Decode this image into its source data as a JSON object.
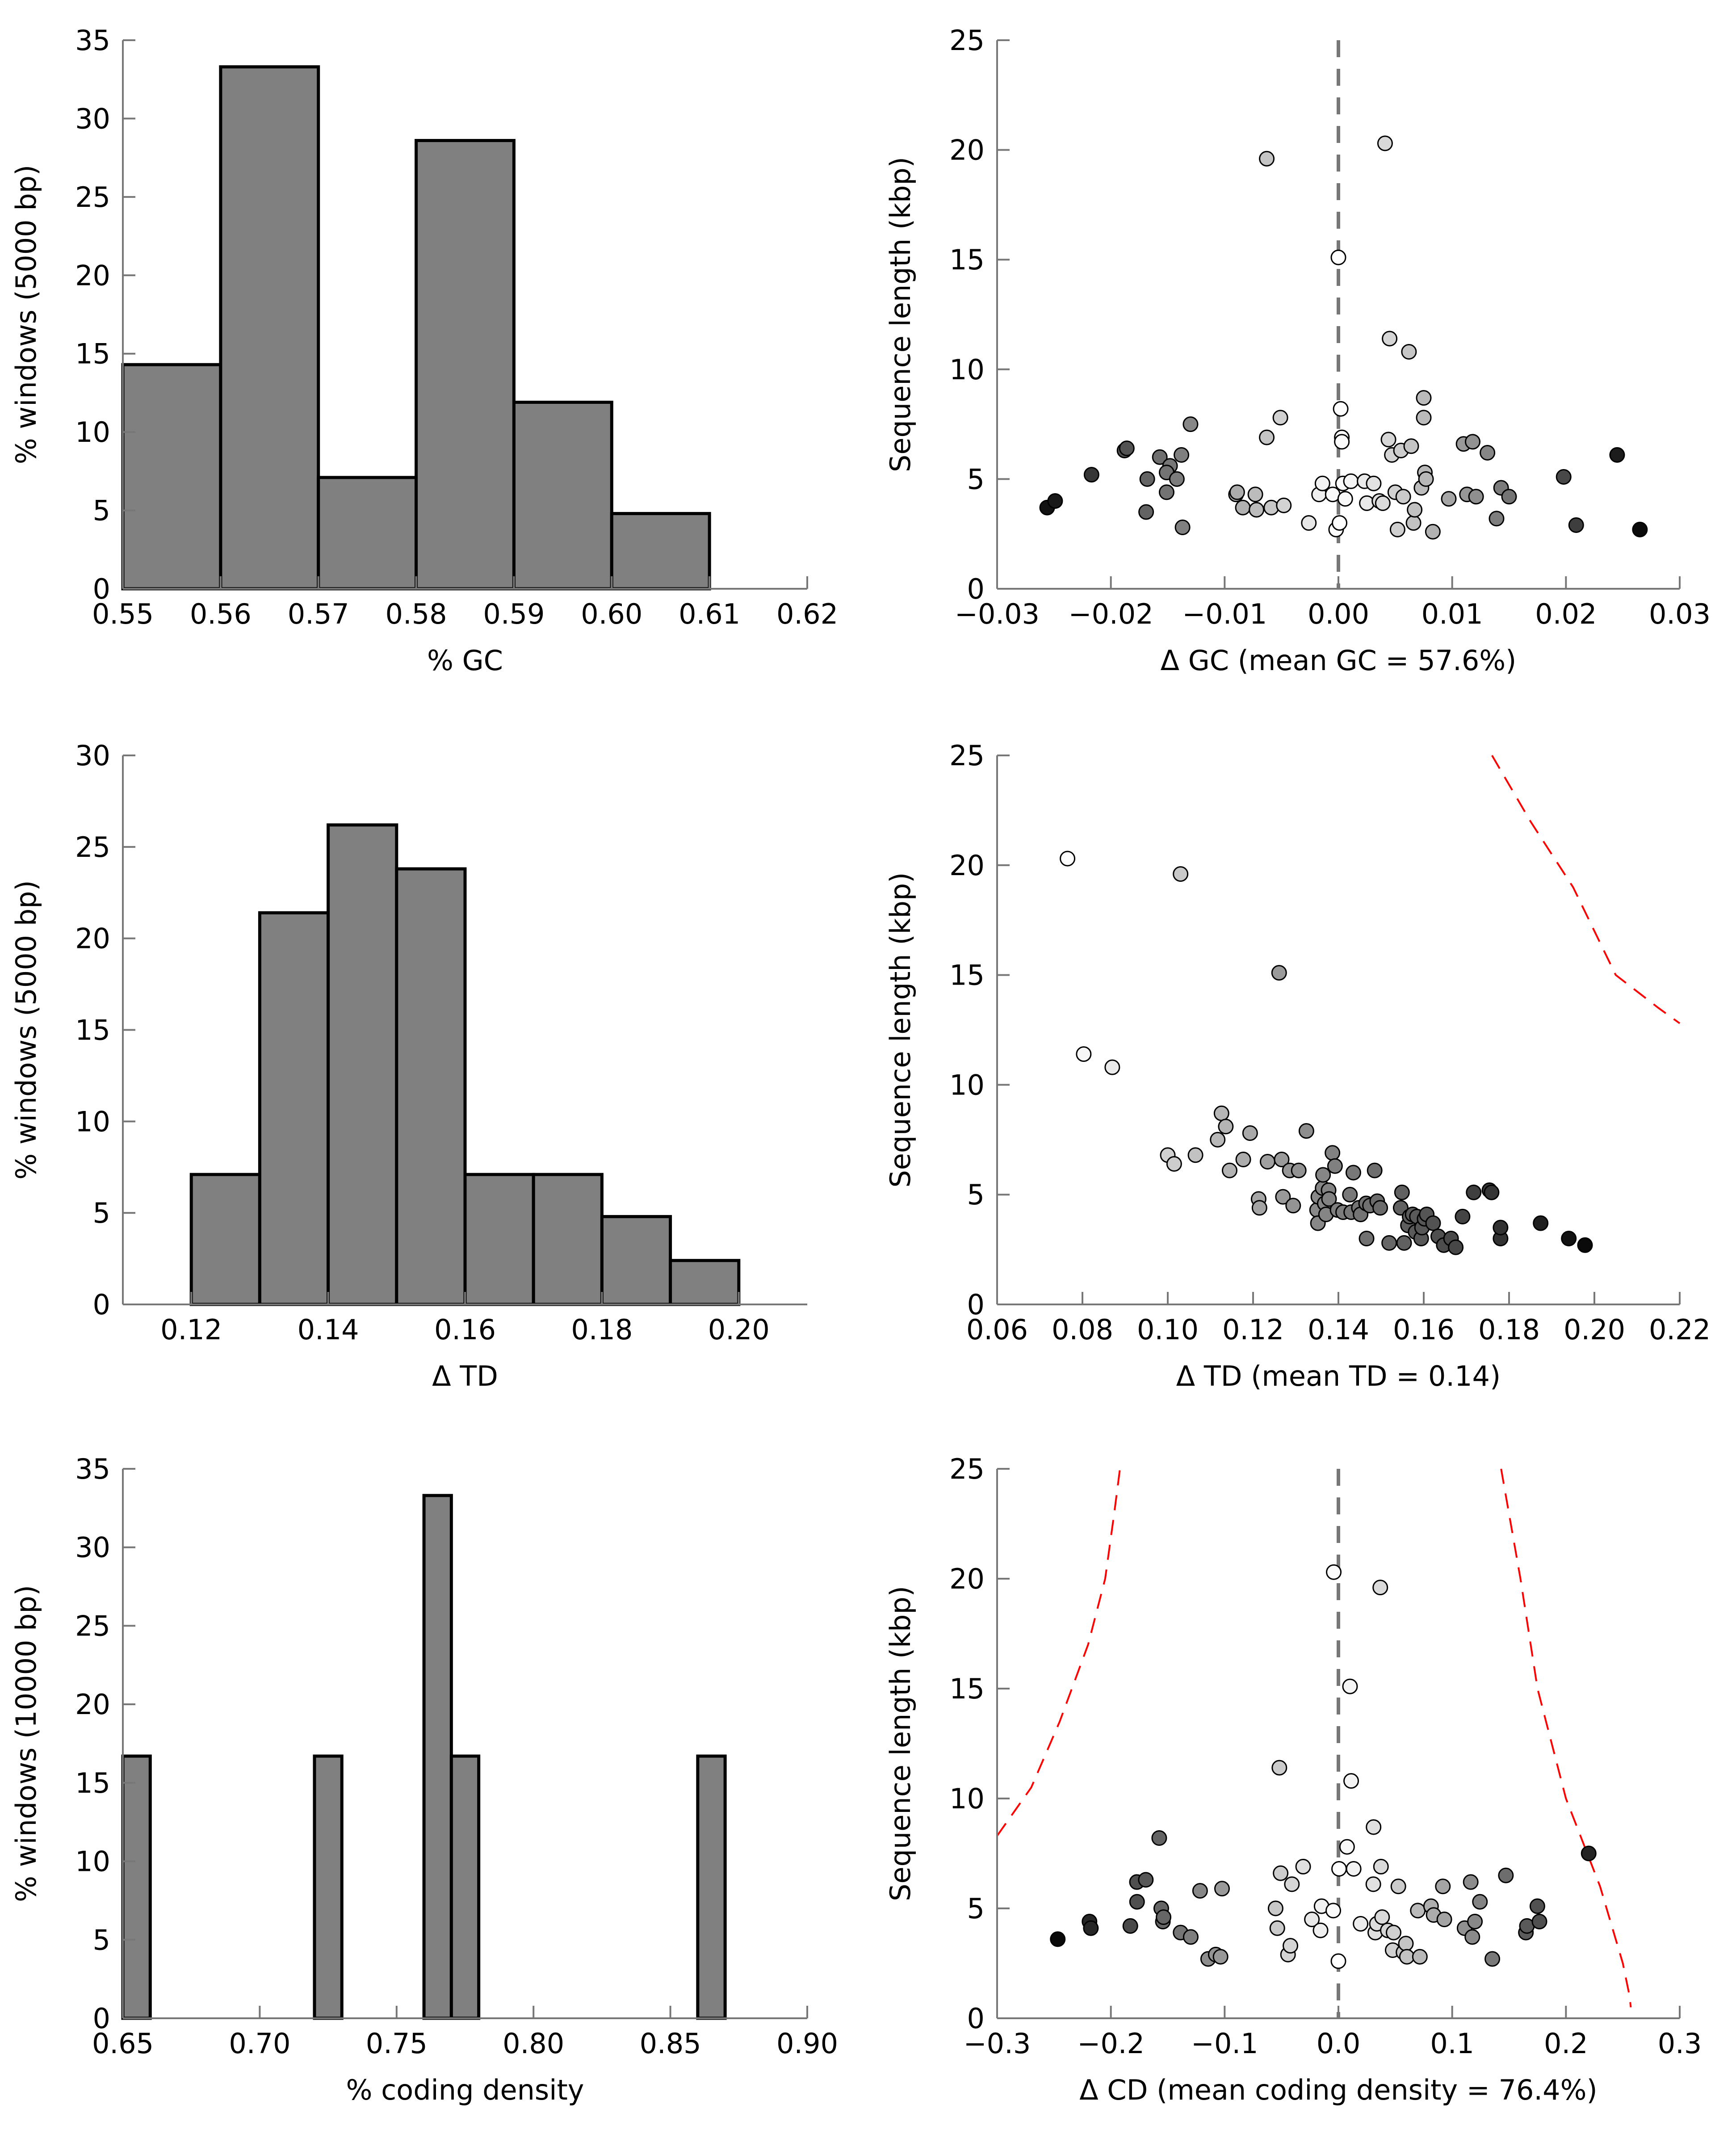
{
  "chart_data": [
    {
      "id": "hist-gc",
      "type": "bar",
      "xlabel": "% GC",
      "ylabel": "% windows (5000 bp)",
      "xlim": [
        0.55,
        0.62
      ],
      "ylim": [
        0,
        35
      ],
      "xticks": [
        "0.55",
        "0.56",
        "0.57",
        "0.58",
        "0.59",
        "0.60",
        "0.61",
        "0.62"
      ],
      "yticks": [
        "0",
        "5",
        "10",
        "15",
        "20",
        "25",
        "30",
        "35"
      ],
      "bins": [
        {
          "x0": 0.55,
          "x1": 0.56,
          "value": 14.3
        },
        {
          "x0": 0.56,
          "x1": 0.57,
          "value": 33.3
        },
        {
          "x0": 0.57,
          "x1": 0.58,
          "value": 7.1
        },
        {
          "x0": 0.58,
          "x1": 0.59,
          "value": 28.6
        },
        {
          "x0": 0.59,
          "x1": 0.6,
          "value": 11.9
        },
        {
          "x0": 0.6,
          "x1": 0.61,
          "value": 4.8
        }
      ],
      "bar_color": "#808080"
    },
    {
      "id": "scatter-gc",
      "type": "scatter",
      "xlabel": "Δ GC (mean GC = 57.6%)",
      "ylabel": "Sequence length (kbp)",
      "xlim": [
        -0.03,
        0.03
      ],
      "ylim": [
        0,
        25
      ],
      "xticks": [
        "−0.03",
        "−0.02",
        "−0.01",
        "0.00",
        "0.01",
        "0.02",
        "0.03"
      ],
      "yticks": [
        "0",
        "5",
        "10",
        "15",
        "20",
        "25"
      ],
      "vline_x": 0,
      "points": [
        [
          -0.0256,
          3.7
        ],
        [
          -0.0249,
          4.0
        ],
        [
          -0.0217,
          5.2
        ],
        [
          -0.0188,
          6.3
        ],
        [
          -0.0186,
          6.4
        ],
        [
          -0.0168,
          5.0
        ],
        [
          -0.0169,
          3.5
        ],
        [
          -0.0157,
          6.0
        ],
        [
          -0.0148,
          5.6
        ],
        [
          -0.0151,
          4.4
        ],
        [
          -0.0151,
          5.3
        ],
        [
          -0.0142,
          5.0
        ],
        [
          -0.0138,
          6.1
        ],
        [
          -0.0137,
          2.8
        ],
        [
          -0.013,
          7.5
        ],
        [
          -0.009,
          4.3
        ],
        [
          -0.0089,
          4.4
        ],
        [
          -0.0084,
          3.7
        ],
        [
          -0.0073,
          4.3
        ],
        [
          -0.0072,
          3.6
        ],
        [
          -0.0063,
          19.6
        ],
        [
          -0.0063,
          6.9
        ],
        [
          -0.0059,
          3.7
        ],
        [
          -0.0051,
          7.8
        ],
        [
          -0.0048,
          3.8
        ],
        [
          -0.0026,
          3.0
        ],
        [
          -0.0017,
          4.3
        ],
        [
          -0.0014,
          4.8
        ],
        [
          -0.0005,
          4.3
        ],
        [
          -0.0002,
          2.7
        ],
        [
          0.0,
          15.1
        ],
        [
          0.0001,
          3.0
        ],
        [
          0.0002,
          8.2
        ],
        [
          0.0003,
          6.9
        ],
        [
          0.0003,
          6.7
        ],
        [
          0.0004,
          4.8
        ],
        [
          0.0006,
          4.1
        ],
        [
          0.0011,
          4.9
        ],
        [
          0.0023,
          4.9
        ],
        [
          0.0025,
          3.9
        ],
        [
          0.0031,
          4.8
        ],
        [
          0.0036,
          4.0
        ],
        [
          0.0039,
          3.9
        ],
        [
          0.0041,
          20.3
        ],
        [
          0.0044,
          6.8
        ],
        [
          0.0045,
          11.4
        ],
        [
          0.0047,
          6.1
        ],
        [
          0.005,
          4.4
        ],
        [
          0.0052,
          2.7
        ],
        [
          0.0055,
          6.3
        ],
        [
          0.0057,
          4.2
        ],
        [
          0.0062,
          10.8
        ],
        [
          0.0064,
          6.5
        ],
        [
          0.0066,
          3.0
        ],
        [
          0.0067,
          3.6
        ],
        [
          0.0073,
          4.6
        ],
        [
          0.0075,
          8.7
        ],
        [
          0.0075,
          7.8
        ],
        [
          0.0076,
          5.3
        ],
        [
          0.0077,
          5.0
        ],
        [
          0.0083,
          2.6
        ],
        [
          0.0097,
          4.1
        ],
        [
          0.011,
          6.6
        ],
        [
          0.0113,
          4.3
        ],
        [
          0.0118,
          6.7
        ],
        [
          0.0121,
          4.2
        ],
        [
          0.0131,
          6.2
        ],
        [
          0.0139,
          3.2
        ],
        [
          0.0143,
          4.6
        ],
        [
          0.015,
          4.2
        ],
        [
          0.0198,
          5.1
        ],
        [
          0.0209,
          2.9
        ],
        [
          0.0245,
          6.1
        ],
        [
          0.0265,
          2.7
        ]
      ]
    },
    {
      "id": "hist-td",
      "type": "bar",
      "xlabel": "Δ TD",
      "ylabel": "% windows (5000 bp)",
      "xlim": [
        0.11,
        0.21
      ],
      "ylim": [
        0,
        30
      ],
      "xticks": [
        "0.12",
        "0.14",
        "0.16",
        "0.18",
        "0.20"
      ],
      "xtick_values": [
        0.12,
        0.14,
        0.16,
        0.18,
        0.2
      ],
      "yticks": [
        "0",
        "5",
        "10",
        "15",
        "20",
        "25",
        "30"
      ],
      "bins": [
        {
          "x0": 0.12,
          "x1": 0.13,
          "value": 7.1
        },
        {
          "x0": 0.13,
          "x1": 0.14,
          "value": 21.4
        },
        {
          "x0": 0.14,
          "x1": 0.15,
          "value": 26.2
        },
        {
          "x0": 0.15,
          "x1": 0.16,
          "value": 23.8
        },
        {
          "x0": 0.16,
          "x1": 0.17,
          "value": 7.1
        },
        {
          "x0": 0.17,
          "x1": 0.18,
          "value": 7.1
        },
        {
          "x0": 0.18,
          "x1": 0.19,
          "value": 4.8
        },
        {
          "x0": 0.19,
          "x1": 0.2,
          "value": 2.4
        }
      ],
      "bar_color": "#808080"
    },
    {
      "id": "scatter-td",
      "type": "scatter",
      "xlabel": "Δ TD (mean TD = 0.14)",
      "ylabel": "Sequence length (kbp)",
      "xlim": [
        0.06,
        0.22
      ],
      "ylim": [
        0,
        25
      ],
      "xticks": [
        "0.06",
        "0.08",
        "0.10",
        "0.12",
        "0.14",
        "0.16",
        "0.18",
        "0.20",
        "0.22"
      ],
      "yticks": [
        "0",
        "5",
        "10",
        "15",
        "20",
        "25"
      ],
      "curve": [
        [
          0.176,
          25.0
        ],
        [
          0.185,
          22.0
        ],
        [
          0.195,
          19.0
        ],
        [
          0.205,
          15.0
        ],
        [
          0.215,
          13.5
        ],
        [
          0.22,
          12.8
        ]
      ],
      "points": [
        [
          0.0765,
          20.3
        ],
        [
          0.0803,
          11.4
        ],
        [
          0.087,
          10.8
        ],
        [
          0.1,
          6.8
        ],
        [
          0.1015,
          6.4
        ],
        [
          0.103,
          19.6
        ],
        [
          0.1065,
          6.8
        ],
        [
          0.1117,
          7.5
        ],
        [
          0.1126,
          8.7
        ],
        [
          0.1136,
          8.1
        ],
        [
          0.1145,
          6.1
        ],
        [
          0.1177,
          6.6
        ],
        [
          0.1193,
          7.8
        ],
        [
          0.1213,
          4.8
        ],
        [
          0.1215,
          4.4
        ],
        [
          0.1234,
          6.5
        ],
        [
          0.1261,
          15.1
        ],
        [
          0.1267,
          6.6
        ],
        [
          0.127,
          4.9
        ],
        [
          0.1286,
          6.1
        ],
        [
          0.1294,
          4.5
        ],
        [
          0.1307,
          6.1
        ],
        [
          0.1325,
          7.9
        ],
        [
          0.135,
          4.3
        ],
        [
          0.1352,
          3.7
        ],
        [
          0.1353,
          4.9
        ],
        [
          0.1363,
          5.3
        ],
        [
          0.1364,
          5.9
        ],
        [
          0.1368,
          4.6
        ],
        [
          0.1371,
          4.1
        ],
        [
          0.1377,
          5.2
        ],
        [
          0.1378,
          4.8
        ],
        [
          0.1386,
          6.9
        ],
        [
          0.1392,
          6.3
        ],
        [
          0.1398,
          4.3
        ],
        [
          0.1411,
          4.2
        ],
        [
          0.1427,
          5.0
        ],
        [
          0.143,
          4.2
        ],
        [
          0.1435,
          6.0
        ],
        [
          0.1448,
          4.4
        ],
        [
          0.1452,
          4.1
        ],
        [
          0.1465,
          4.6
        ],
        [
          0.1466,
          3.0
        ],
        [
          0.1474,
          4.5
        ],
        [
          0.1485,
          6.1
        ],
        [
          0.1491,
          4.7
        ],
        [
          0.1498,
          4.4
        ],
        [
          0.1519,
          2.8
        ],
        [
          0.1546,
          4.4
        ],
        [
          0.1549,
          5.1
        ],
        [
          0.1554,
          2.8
        ],
        [
          0.1563,
          3.6
        ],
        [
          0.1567,
          4.0
        ],
        [
          0.1574,
          4.1
        ],
        [
          0.1581,
          3.3
        ],
        [
          0.1584,
          4.0
        ],
        [
          0.1594,
          3.0
        ],
        [
          0.1596,
          3.5
        ],
        [
          0.1602,
          3.9
        ],
        [
          0.1607,
          4.1
        ],
        [
          0.1622,
          3.7
        ],
        [
          0.1634,
          3.1
        ],
        [
          0.1647,
          2.7
        ],
        [
          0.1664,
          3.0
        ],
        [
          0.1675,
          2.6
        ],
        [
          0.1691,
          4.0
        ],
        [
          0.1717,
          5.1
        ],
        [
          0.1754,
          5.2
        ],
        [
          0.1759,
          5.1
        ],
        [
          0.178,
          3.0
        ],
        [
          0.178,
          3.5
        ],
        [
          0.1874,
          3.7
        ],
        [
          0.194,
          3.0
        ],
        [
          0.1978,
          2.7
        ]
      ]
    },
    {
      "id": "hist-cd",
      "type": "bar",
      "xlabel": "% coding density",
      "ylabel": "% windows (10000 bp)",
      "xlim": [
        0.65,
        0.9
      ],
      "ylim": [
        0,
        35
      ],
      "xticks": [
        "0.65",
        "0.70",
        "0.75",
        "0.80",
        "0.85",
        "0.90"
      ],
      "yticks": [
        "0",
        "5",
        "10",
        "15",
        "20",
        "25",
        "30",
        "35"
      ],
      "bins": [
        {
          "x0": 0.65,
          "x1": 0.66,
          "value": 16.7
        },
        {
          "x0": 0.72,
          "x1": 0.73,
          "value": 16.7
        },
        {
          "x0": 0.76,
          "x1": 0.77,
          "value": 33.3
        },
        {
          "x0": 0.77,
          "x1": 0.78,
          "value": 16.7
        },
        {
          "x0": 0.86,
          "x1": 0.87,
          "value": 16.7
        }
      ],
      "bar_color": "#808080"
    },
    {
      "id": "scatter-cd",
      "type": "scatter",
      "xlabel": "Δ CD (mean coding density = 76.4%)",
      "ylabel": "Sequence length (kbp)",
      "xlim": [
        -0.3,
        0.3
      ],
      "ylim": [
        0,
        25
      ],
      "xticks": [
        "−0.3",
        "−0.2",
        "−0.1",
        "0.0",
        "0.1",
        "0.2",
        "0.3"
      ],
      "yticks": [
        "0",
        "5",
        "10",
        "15",
        "20",
        "25"
      ],
      "vline_x": 0,
      "curve_left": [
        [
          -0.3,
          8.3
        ],
        [
          -0.27,
          10.5
        ],
        [
          -0.245,
          13.5
        ],
        [
          -0.22,
          17.0
        ],
        [
          -0.205,
          20.0
        ],
        [
          -0.197,
          23.0
        ],
        [
          -0.192,
          25.0
        ]
      ],
      "curve_right": [
        [
          0.143,
          25.0
        ],
        [
          0.16,
          20.0
        ],
        [
          0.175,
          15.0
        ],
        [
          0.2,
          10.0
        ],
        [
          0.23,
          6.0
        ],
        [
          0.25,
          2.5
        ],
        [
          0.256,
          1.0
        ],
        [
          0.257,
          0.5
        ]
      ],
      "points": [
        [
          -0.2467,
          3.6
        ],
        [
          -0.2188,
          4.4
        ],
        [
          -0.2176,
          4.1
        ],
        [
          -0.1829,
          4.2
        ],
        [
          -0.1771,
          6.2
        ],
        [
          -0.177,
          5.3
        ],
        [
          -0.1693,
          6.3
        ],
        [
          -0.1575,
          8.2
        ],
        [
          -0.1557,
          5.0
        ],
        [
          -0.1543,
          4.4
        ],
        [
          -0.1537,
          4.6
        ],
        [
          -0.1387,
          3.9
        ],
        [
          -0.1298,
          3.7
        ],
        [
          -0.1216,
          5.8
        ],
        [
          -0.1145,
          2.7
        ],
        [
          -0.1078,
          2.9
        ],
        [
          -0.1036,
          2.8
        ],
        [
          -0.1023,
          5.9
        ],
        [
          -0.0552,
          5.0
        ],
        [
          -0.0537,
          4.1
        ],
        [
          -0.0519,
          11.4
        ],
        [
          -0.0508,
          6.6
        ],
        [
          -0.0443,
          2.9
        ],
        [
          -0.0422,
          3.3
        ],
        [
          -0.0409,
          6.1
        ],
        [
          -0.031,
          6.9
        ],
        [
          -0.0233,
          4.5
        ],
        [
          -0.0157,
          4.0
        ],
        [
          -0.0148,
          5.1
        ],
        [
          -0.0045,
          4.9
        ],
        [
          -0.0041,
          20.3
        ],
        [
          0.0,
          2.6
        ],
        [
          0.0006,
          6.8
        ],
        [
          0.0076,
          7.8
        ],
        [
          0.0102,
          15.1
        ],
        [
          0.0112,
          10.8
        ],
        [
          0.0134,
          6.8
        ],
        [
          0.0195,
          4.3
        ],
        [
          0.0307,
          6.1
        ],
        [
          0.0309,
          8.7
        ],
        [
          0.0324,
          3.9
        ],
        [
          0.0338,
          4.3
        ],
        [
          0.0368,
          19.6
        ],
        [
          0.0374,
          6.9
        ],
        [
          0.0384,
          4.6
        ],
        [
          0.0434,
          4.0
        ],
        [
          0.0477,
          3.1
        ],
        [
          0.0485,
          3.9
        ],
        [
          0.0527,
          6.0
        ],
        [
          0.0572,
          3.0
        ],
        [
          0.0593,
          3.4
        ],
        [
          0.0602,
          2.8
        ],
        [
          0.0698,
          4.9
        ],
        [
          0.0716,
          2.8
        ],
        [
          0.0814,
          5.1
        ],
        [
          0.0837,
          4.7
        ],
        [
          0.0918,
          6.0
        ],
        [
          0.0931,
          4.5
        ],
        [
          0.1109,
          4.1
        ],
        [
          0.1163,
          6.2
        ],
        [
          0.1177,
          3.7
        ],
        [
          0.12,
          4.4
        ],
        [
          0.1244,
          5.3
        ],
        [
          0.1353,
          2.7
        ],
        [
          0.1472,
          6.5
        ],
        [
          0.1648,
          3.9
        ],
        [
          0.1657,
          4.2
        ],
        [
          0.1749,
          5.1
        ],
        [
          0.1767,
          4.4
        ],
        [
          0.22,
          7.5
        ]
      ]
    }
  ]
}
